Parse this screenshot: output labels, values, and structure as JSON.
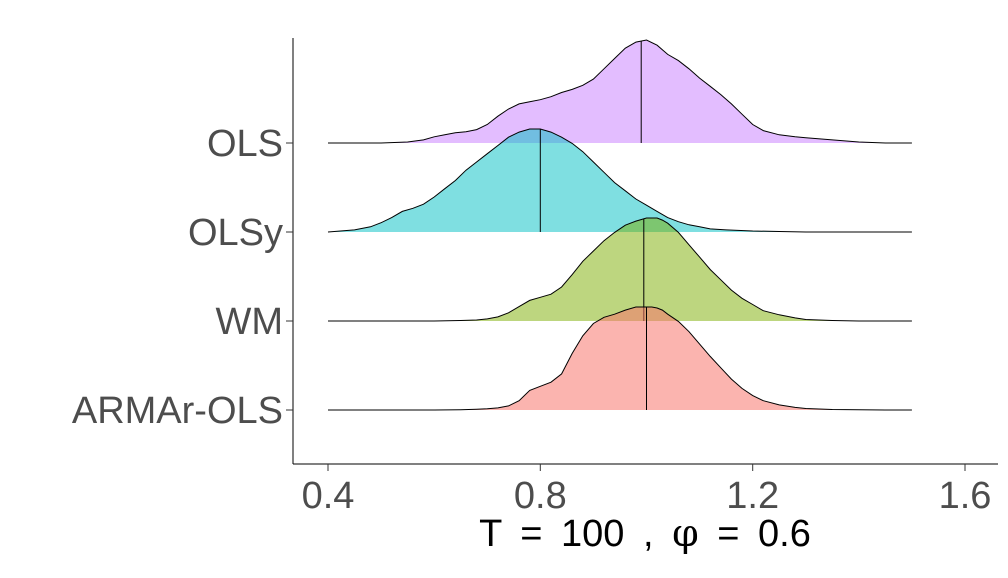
{
  "chart_data": {
    "type": "ridgeline",
    "title": "",
    "xlabel": "T = 100 , φ = 0.6",
    "xlabel_parts": {
      "t_symbol": "T",
      "equals": "=",
      "t_value": "100",
      "separator": ",",
      "phi_symbol": "φ",
      "phi_value": "0.6"
    },
    "ylabel": "",
    "xlim": [
      0.35,
      1.62
    ],
    "x_ticks": [
      0.4,
      0.8,
      1.2,
      1.6
    ],
    "x_tick_labels": [
      "0.4",
      "0.8",
      "1.2",
      "1.6"
    ],
    "grid": false,
    "legend": "none",
    "series": [
      {
        "name": "ARMAr-OLS",
        "color": "#F8766D",
        "fill_opacity": 0.55,
        "median": 1.0,
        "x_start": 0.4,
        "x_end": 1.5,
        "x": [
          0.4,
          0.45,
          0.5,
          0.55,
          0.6,
          0.65,
          0.68,
          0.7,
          0.72,
          0.74,
          0.76,
          0.78,
          0.8,
          0.82,
          0.84,
          0.86,
          0.88,
          0.9,
          0.92,
          0.94,
          0.96,
          0.98,
          1.0,
          1.01,
          1.02,
          1.03,
          1.04,
          1.06,
          1.08,
          1.1,
          1.12,
          1.14,
          1.16,
          1.18,
          1.2,
          1.22,
          1.25,
          1.28,
          1.3,
          1.35,
          1.4,
          1.45,
          1.5
        ],
        "density": [
          0.0,
          0.0,
          0.0,
          0.0,
          0.0,
          0.003,
          0.007,
          0.012,
          0.02,
          0.04,
          0.09,
          0.19,
          0.23,
          0.27,
          0.35,
          0.55,
          0.72,
          0.84,
          0.9,
          0.93,
          0.97,
          1.0,
          1.0,
          1.0,
          0.99,
          0.97,
          0.93,
          0.86,
          0.76,
          0.64,
          0.52,
          0.41,
          0.3,
          0.21,
          0.14,
          0.09,
          0.05,
          0.025,
          0.015,
          0.005,
          0.002,
          0.0,
          0.0
        ]
      },
      {
        "name": "WM",
        "color": "#7CAE00",
        "fill_opacity": 0.5,
        "median": 0.995,
        "x_start": 0.4,
        "x_end": 1.5,
        "x": [
          0.4,
          0.45,
          0.5,
          0.55,
          0.6,
          0.65,
          0.68,
          0.7,
          0.72,
          0.74,
          0.76,
          0.78,
          0.8,
          0.82,
          0.84,
          0.86,
          0.88,
          0.9,
          0.92,
          0.94,
          0.96,
          0.98,
          1.0,
          1.01,
          1.02,
          1.03,
          1.04,
          1.06,
          1.08,
          1.1,
          1.12,
          1.14,
          1.16,
          1.18,
          1.2,
          1.22,
          1.25,
          1.28,
          1.3,
          1.35,
          1.4,
          1.45,
          1.5
        ],
        "density": [
          0.0,
          0.0,
          0.0,
          0.0,
          0.0,
          0.005,
          0.01,
          0.02,
          0.04,
          0.08,
          0.14,
          0.2,
          0.23,
          0.26,
          0.33,
          0.45,
          0.58,
          0.68,
          0.78,
          0.86,
          0.93,
          0.97,
          1.0,
          1.0,
          1.0,
          0.98,
          0.95,
          0.86,
          0.74,
          0.62,
          0.5,
          0.4,
          0.3,
          0.22,
          0.16,
          0.1,
          0.06,
          0.03,
          0.015,
          0.005,
          0.0,
          0.0,
          0.0
        ]
      },
      {
        "name": "OLSy",
        "color": "#00BFC4",
        "fill_opacity": 0.5,
        "median": 0.8,
        "x_start": 0.4,
        "x_end": 1.5,
        "x": [
          0.4,
          0.45,
          0.48,
          0.5,
          0.52,
          0.54,
          0.56,
          0.58,
          0.6,
          0.62,
          0.64,
          0.66,
          0.68,
          0.7,
          0.72,
          0.74,
          0.76,
          0.78,
          0.8,
          0.82,
          0.84,
          0.86,
          0.88,
          0.9,
          0.92,
          0.94,
          0.96,
          0.98,
          1.0,
          1.02,
          1.04,
          1.06,
          1.08,
          1.1,
          1.12,
          1.15,
          1.2,
          1.25,
          1.3,
          1.4,
          1.5
        ],
        "density": [
          0.0,
          0.02,
          0.05,
          0.09,
          0.14,
          0.2,
          0.23,
          0.27,
          0.34,
          0.42,
          0.5,
          0.6,
          0.68,
          0.76,
          0.84,
          0.92,
          0.97,
          1.0,
          1.0,
          0.97,
          0.92,
          0.86,
          0.78,
          0.68,
          0.58,
          0.48,
          0.4,
          0.32,
          0.26,
          0.2,
          0.14,
          0.1,
          0.07,
          0.05,
          0.03,
          0.02,
          0.01,
          0.005,
          0.0,
          0.0,
          0.0
        ]
      },
      {
        "name": "OLS",
        "color": "#C77CFF",
        "fill_opacity": 0.5,
        "median": 0.99,
        "x_start": 0.4,
        "x_end": 1.5,
        "x": [
          0.4,
          0.45,
          0.5,
          0.55,
          0.58,
          0.6,
          0.62,
          0.64,
          0.66,
          0.68,
          0.7,
          0.72,
          0.74,
          0.76,
          0.78,
          0.8,
          0.82,
          0.84,
          0.86,
          0.88,
          0.9,
          0.92,
          0.94,
          0.96,
          0.98,
          1.0,
          1.02,
          1.04,
          1.06,
          1.08,
          1.1,
          1.12,
          1.14,
          1.16,
          1.18,
          1.2,
          1.22,
          1.25,
          1.28,
          1.3,
          1.35,
          1.4,
          1.45,
          1.5
        ],
        "density": [
          0.0,
          0.0,
          0.0,
          0.01,
          0.03,
          0.06,
          0.08,
          0.1,
          0.11,
          0.13,
          0.18,
          0.26,
          0.33,
          0.38,
          0.4,
          0.42,
          0.45,
          0.49,
          0.52,
          0.56,
          0.62,
          0.72,
          0.82,
          0.92,
          0.98,
          1.0,
          0.95,
          0.86,
          0.8,
          0.72,
          0.63,
          0.55,
          0.47,
          0.38,
          0.28,
          0.18,
          0.12,
          0.08,
          0.06,
          0.05,
          0.03,
          0.01,
          0.0,
          0.0
        ]
      }
    ]
  }
}
